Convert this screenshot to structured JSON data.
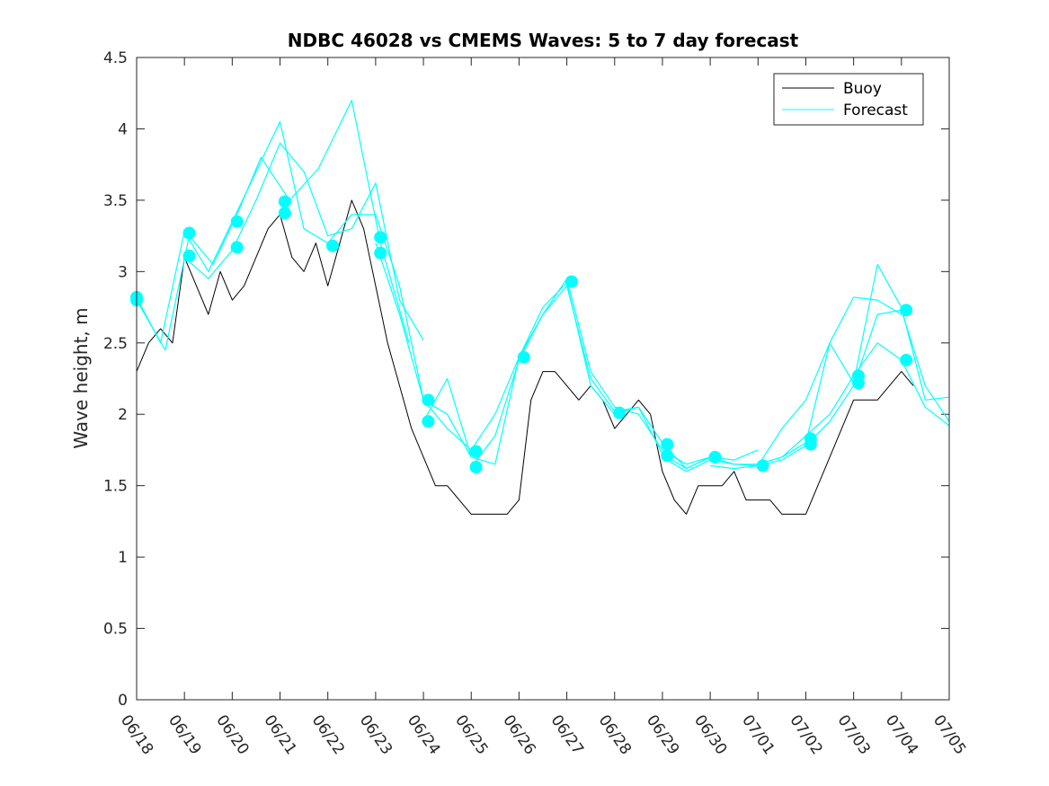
{
  "chart_data": {
    "type": "line",
    "title": "NDBC 46028 vs CMEMS Waves: 5 to 7 day forecast",
    "xlabel": "",
    "ylabel": "Wave height, m",
    "xlim": [
      0,
      17
    ],
    "ylim": [
      0,
      4.5
    ],
    "x_tick_labels": [
      "06/18",
      "06/19",
      "06/20",
      "06/21",
      "06/22",
      "06/23",
      "06/24",
      "06/25",
      "06/26",
      "06/27",
      "06/28",
      "06/29",
      "06/30",
      "07/01",
      "07/02",
      "07/03",
      "07/04",
      "07/05"
    ],
    "y_tick_labels": [
      "0",
      "0.5",
      "1",
      "1.5",
      "2",
      "2.5",
      "3",
      "3.5",
      "4",
      "4.5"
    ],
    "y_ticks": [
      0,
      0.5,
      1,
      1.5,
      2,
      2.5,
      3,
      3.5,
      4,
      4.5
    ],
    "legend_position": "top-right",
    "colors": {
      "buoy": "#000000",
      "forecast": "#00FFFF"
    },
    "series": [
      {
        "name": "Buoy",
        "color": "#000000",
        "x": [
          0,
          0.25,
          0.5,
          0.75,
          1,
          1.25,
          1.5,
          1.75,
          2,
          2.25,
          2.5,
          2.75,
          3,
          3.25,
          3.5,
          3.75,
          4,
          4.25,
          4.5,
          4.75,
          5,
          5.25,
          5.5,
          5.75,
          6,
          6.25,
          6.5,
          6.75,
          7,
          7.25,
          7.5,
          7.75,
          8,
          8.25,
          8.5,
          8.75,
          9,
          9.25,
          9.5,
          9.75,
          10,
          10.25,
          10.5,
          10.75,
          11,
          11.25,
          11.5,
          11.75,
          12,
          12.25,
          12.5,
          12.75,
          13,
          13.25,
          13.5,
          13.75,
          14,
          14.25,
          14.5,
          14.75,
          15,
          15.25,
          15.5,
          15.75,
          16,
          16.25
        ],
        "y": [
          2.3,
          2.5,
          2.6,
          2.5,
          3.1,
          2.9,
          2.7,
          3.0,
          2.8,
          2.9,
          3.1,
          3.3,
          3.4,
          3.1,
          3.0,
          3.2,
          2.9,
          3.2,
          3.5,
          3.3,
          2.9,
          2.5,
          2.2,
          1.9,
          1.7,
          1.5,
          1.5,
          1.4,
          1.3,
          1.3,
          1.3,
          1.3,
          1.4,
          2.1,
          2.3,
          2.3,
          2.2,
          2.1,
          2.2,
          2.1,
          1.9,
          2.0,
          2.1,
          2.0,
          1.6,
          1.4,
          1.3,
          1.5,
          1.5,
          1.5,
          1.6,
          1.4,
          1.4,
          1.4,
          1.3,
          1.3,
          1.3,
          1.5,
          1.7,
          1.9,
          2.1,
          2.1,
          2.1,
          2.2,
          2.3,
          2.2
        ]
      },
      {
        "name": "Forecast",
        "color": "#00FFFF",
        "x": [
          0,
          0.5,
          1,
          1.5,
          2,
          2.5,
          3,
          3.5,
          4,
          4.5,
          5,
          5.5,
          6,
          6.5,
          7
        ],
        "y": [
          2.82,
          2.5,
          3.28,
          3.0,
          3.35,
          3.7,
          4.05,
          3.3,
          3.2,
          3.4,
          3.4,
          2.9,
          2.1,
          2.0,
          1.7
        ]
      },
      {
        "x": [
          1,
          1.5,
          2,
          2.5,
          3,
          3.5,
          4,
          4.5,
          5,
          5.5,
          6
        ],
        "y": [
          3.1,
          2.95,
          3.15,
          3.5,
          3.9,
          3.7,
          3.25,
          3.3,
          3.62,
          2.8,
          2.52
        ]
      },
      {
        "x": [
          0,
          0.6,
          1.1,
          1.6,
          2.1,
          2.6,
          3.2,
          3.8,
          4.5,
          5.1,
          5.7
        ],
        "y": [
          2.8,
          2.45,
          3.25,
          3.05,
          3.4,
          3.8,
          3.5,
          3.72,
          4.2,
          3.2,
          2.5
        ]
      },
      {
        "x": [
          5,
          5.5,
          6,
          6.5,
          7,
          7.5,
          8,
          8.5,
          9,
          9.5,
          10,
          10.5,
          11,
          11.5,
          12
        ],
        "y": [
          3.2,
          2.7,
          2.1,
          1.9,
          1.75,
          2.0,
          2.4,
          2.7,
          2.95,
          2.3,
          2.05,
          2.0,
          1.75,
          1.65,
          1.7
        ]
      },
      {
        "x": [
          6,
          6.5,
          7,
          7.5,
          8,
          8.5,
          9,
          9.5,
          10,
          10.5,
          11,
          11.5,
          12,
          12.5,
          13
        ],
        "y": [
          1.95,
          2.25,
          1.7,
          1.65,
          2.4,
          2.75,
          2.92,
          2.2,
          2.0,
          2.05,
          1.72,
          1.62,
          1.7,
          1.68,
          1.75
        ]
      },
      {
        "x": [
          7,
          7.5,
          8,
          8.5,
          9,
          9.5,
          10,
          10.5,
          11,
          11.5,
          12,
          12.5,
          13,
          13.5,
          14,
          14.5,
          15,
          15.5,
          16
        ],
        "y": [
          1.63,
          1.85,
          2.38,
          2.7,
          2.9,
          2.25,
          2.02,
          2.05,
          1.8,
          1.62,
          1.7,
          1.65,
          1.65,
          1.7,
          1.8,
          2.5,
          2.82,
          2.8,
          2.7
        ]
      },
      {
        "x": [
          11,
          11.5,
          12,
          12.5,
          13,
          13.5,
          14,
          14.5,
          15,
          15.5,
          16,
          16.5,
          17
        ],
        "y": [
          1.7,
          1.6,
          1.68,
          1.65,
          1.64,
          1.9,
          2.1,
          2.5,
          2.22,
          3.05,
          2.75,
          2.1,
          2.12
        ]
      },
      {
        "x": [
          13,
          13.5,
          14,
          14.5,
          15,
          15.5,
          16,
          16.5,
          17
        ],
        "y": [
          1.65,
          1.7,
          1.85,
          2.0,
          2.27,
          2.5,
          2.38,
          2.05,
          1.92
        ]
      },
      {
        "x": [
          12,
          12.5,
          13,
          13.5,
          14,
          14.5,
          15,
          15.5,
          16,
          16.5,
          17
        ],
        "y": [
          1.64,
          1.62,
          1.64,
          1.68,
          1.78,
          1.95,
          2.2,
          2.7,
          2.73,
          2.2,
          1.95
        ]
      }
    ],
    "markers": {
      "name": "Forecast start",
      "x": [
        0,
        0,
        1.1,
        1.1,
        2.1,
        2.1,
        3.1,
        3.1,
        4.1,
        5.1,
        5.1,
        6.1,
        6.1,
        7.1,
        7.1,
        8.1,
        9.1,
        10.1,
        11.1,
        11.1,
        12.1,
        13.1,
        14.1,
        14.1,
        15.1,
        15.1,
        16.1,
        16.1
      ],
      "y": [
        2.82,
        2.8,
        3.27,
        3.11,
        3.35,
        3.17,
        3.49,
        3.41,
        3.18,
        3.24,
        3.13,
        2.1,
        1.95,
        1.74,
        1.63,
        2.4,
        2.93,
        2.01,
        1.79,
        1.71,
        1.7,
        1.64,
        1.83,
        1.79,
        2.27,
        2.22,
        2.73,
        2.38
      ]
    }
  }
}
